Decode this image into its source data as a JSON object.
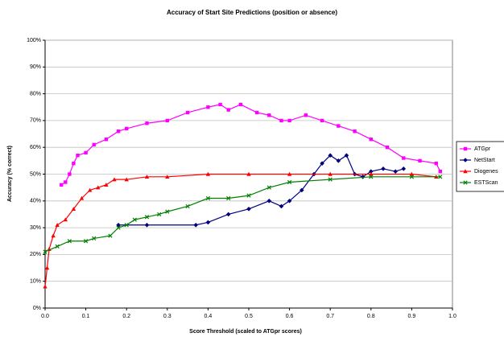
{
  "chart_data": {
    "type": "line",
    "title": "Accuracy of Start Site Predictions (position or absence)",
    "x_label": "Score Threshold (scaled to ATGpr scores)",
    "y_label": "Accuracy (% correct)",
    "xlim": [
      0,
      1
    ],
    "ylim": [
      0,
      100
    ],
    "xticks": [
      {
        "value": 0,
        "label": "0.0"
      },
      0.1,
      0.2,
      0.3,
      0.4,
      0.5,
      0.6,
      0.7,
      0.8,
      0.9,
      {
        "value": 1,
        "label": "1.0"
      }
    ],
    "yticks": [
      {
        "value": 0,
        "label": "0%"
      },
      {
        "value": 10,
        "label": "10%"
      },
      {
        "value": 20,
        "label": "20%"
      },
      {
        "value": 30,
        "label": "30%"
      },
      {
        "value": 40,
        "label": "40%"
      },
      {
        "value": 50,
        "label": "50%"
      },
      {
        "value": 60,
        "label": "60%"
      },
      {
        "value": 70,
        "label": "70%"
      },
      {
        "value": 80,
        "label": "80%"
      },
      {
        "value": 90,
        "label": "90%"
      },
      {
        "value": 100,
        "label": "100%"
      }
    ],
    "grid": true,
    "legend": "right",
    "series": [
      {
        "name": "ATGpr",
        "color": "#ff00ff",
        "marker": "square",
        "x": [
          0.04,
          0.05,
          0.06,
          0.07,
          0.08,
          0.1,
          0.12,
          0.15,
          0.18,
          0.2,
          0.25,
          0.3,
          0.35,
          0.4,
          0.43,
          0.45,
          0.48,
          0.52,
          0.55,
          0.58,
          0.6,
          0.64,
          0.68,
          0.72,
          0.76,
          0.8,
          0.84,
          0.88,
          0.92,
          0.96,
          0.97
        ],
        "values": [
          46,
          47,
          50,
          54,
          57,
          58,
          61,
          63,
          66,
          67,
          69,
          70,
          73,
          75,
          76,
          74,
          76,
          73,
          72,
          70,
          70,
          72,
          70,
          68,
          66,
          63,
          60,
          56,
          55,
          54,
          51
        ]
      },
      {
        "name": "NetStart",
        "color": "#000080",
        "marker": "diamond",
        "x": [
          0.18,
          0.25,
          0.37,
          0.4,
          0.45,
          0.5,
          0.55,
          0.58,
          0.6,
          0.63,
          0.66,
          0.68,
          0.7,
          0.72,
          0.74,
          0.76,
          0.78,
          0.8,
          0.83,
          0.86,
          0.88
        ],
        "values": [
          31,
          31,
          31,
          32,
          35,
          37,
          40,
          38,
          40,
          44,
          50,
          54,
          57,
          55,
          57,
          50,
          49,
          51,
          52,
          51,
          52
        ]
      },
      {
        "name": "Diogenes",
        "color": "#ff0000",
        "marker": "triangle",
        "x": [
          0,
          0.005,
          0.01,
          0.02,
          0.03,
          0.05,
          0.07,
          0.09,
          0.11,
          0.13,
          0.15,
          0.17,
          0.2,
          0.25,
          0.3,
          0.4,
          0.5,
          0.6,
          0.7,
          0.8,
          0.9,
          0.96
        ],
        "values": [
          8,
          15,
          22,
          27,
          31,
          33,
          37,
          41,
          44,
          45,
          46,
          48,
          48,
          49,
          49,
          50,
          50,
          50,
          50,
          50,
          50,
          49
        ]
      },
      {
        "name": "ESTScan",
        "color": "#008000",
        "marker": "cross",
        "x": [
          0,
          0.03,
          0.06,
          0.1,
          0.12,
          0.16,
          0.18,
          0.2,
          0.22,
          0.25,
          0.28,
          0.3,
          0.35,
          0.4,
          0.45,
          0.5,
          0.55,
          0.6,
          0.7,
          0.8,
          0.9,
          0.97
        ],
        "values": [
          21,
          23,
          25,
          25,
          26,
          27,
          30,
          31,
          33,
          34,
          35,
          36,
          38,
          41,
          41,
          42,
          45,
          47,
          48,
          49,
          49,
          49
        ]
      }
    ]
  }
}
